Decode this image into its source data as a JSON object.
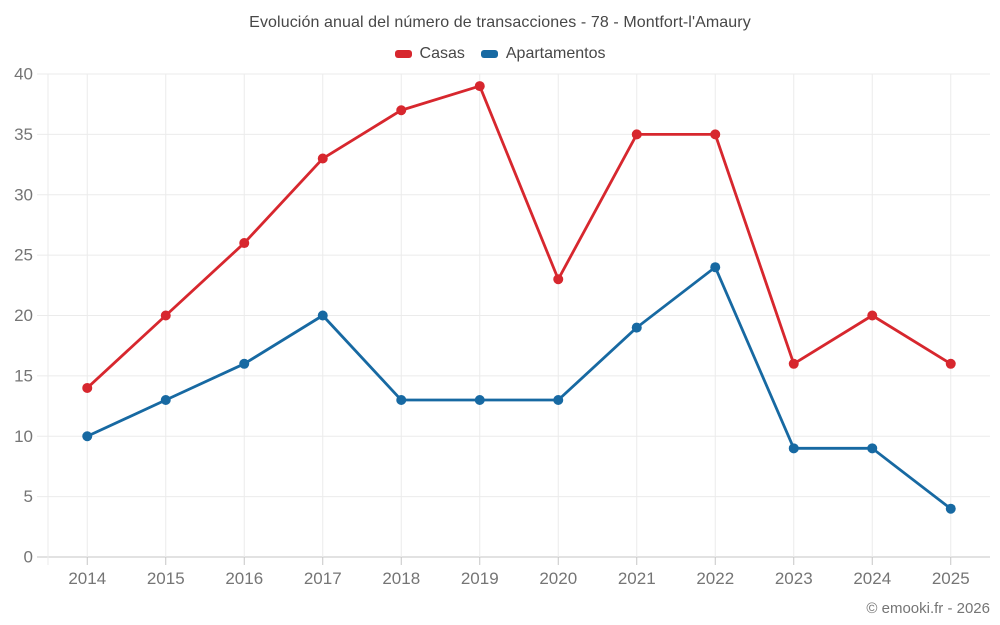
{
  "page": {
    "footer": "© emooki.fr - 2026"
  },
  "chart_data": {
    "type": "line",
    "title": "Evolución anual del número de transacciones - 78 - Montfort-l'Amaury",
    "x": [
      "2014",
      "2015",
      "2016",
      "2017",
      "2018",
      "2019",
      "2020",
      "2021",
      "2022",
      "2023",
      "2024",
      "2025"
    ],
    "series": [
      {
        "name": "Casas",
        "color": "#d7272e",
        "values": [
          14,
          20,
          26,
          33,
          37,
          39,
          23,
          35,
          35,
          16,
          20,
          16
        ]
      },
      {
        "name": "Apartamentos",
        "color": "#1769a2",
        "values": [
          10,
          13,
          16,
          20,
          13,
          13,
          13,
          19,
          24,
          9,
          9,
          4
        ]
      }
    ],
    "xlabel": "",
    "ylabel": "",
    "ylim": [
      0,
      40
    ],
    "ytick_step": 5,
    "yticks": [
      0,
      5,
      10,
      15,
      20,
      25,
      30,
      35,
      40
    ],
    "grid": true,
    "legend_position": "top"
  },
  "style": {
    "background": "#ffffff",
    "grid_color": "#ebebeb",
    "axis_color": "#c6c6c6",
    "tick_label_color": "#757575",
    "text_color": "#474747",
    "marker_radius": 5,
    "line_width": 2.8
  }
}
